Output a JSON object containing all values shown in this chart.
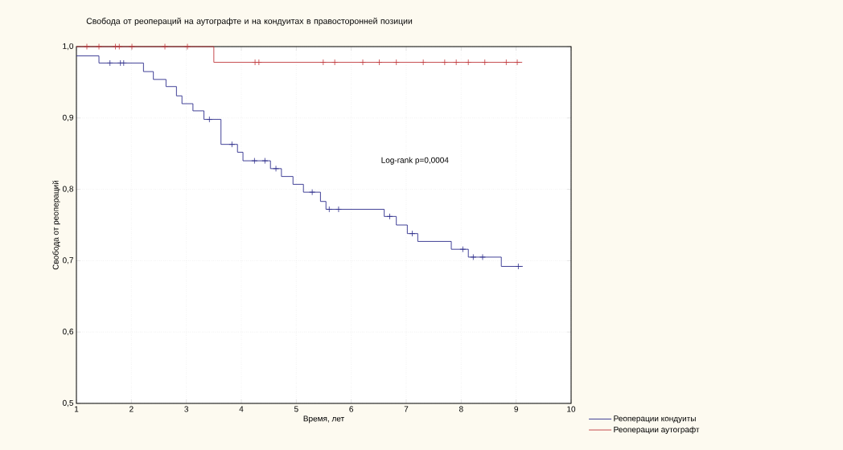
{
  "chart_data": {
    "type": "step",
    "title": "Свобода от реопераций на аутографте и на кондуитах в правосторонней позиции",
    "xlabel": "Время, лет",
    "ylabel": "Свобода от реопераций",
    "xlim": [
      1,
      10
    ],
    "ylim": [
      0.5,
      1.0
    ],
    "xticks": [
      1,
      2,
      3,
      4,
      5,
      6,
      7,
      8,
      9,
      10
    ],
    "yticks": [
      {
        "value": 0.5,
        "label": "0,5"
      },
      {
        "value": 0.6,
        "label": "0,6"
      },
      {
        "value": 0.7,
        "label": "0,7"
      },
      {
        "value": 0.8,
        "label": "0,8"
      },
      {
        "value": 0.9,
        "label": "0,9"
      },
      {
        "value": 1.0,
        "label": "1,0"
      }
    ],
    "grid": true,
    "legend": "bottom right",
    "line_style": "solid",
    "annotations": [
      "Log-rank p=0,0004"
    ],
    "series": [
      {
        "name": "Реоперации кондуиты",
        "color": "#2e2e8c",
        "x": [
          1,
          1.41,
          2.22,
          2.4,
          2.63,
          2.82,
          2.92,
          3.12,
          3.32,
          3.63,
          3.93,
          4.03,
          4.53,
          4.73,
          4.94,
          5.13,
          5.44,
          5.54,
          6.6,
          6.82,
          7.02,
          7.21,
          7.82,
          8.13,
          8.73,
          9.12
        ],
        "values": [
          0.987,
          0.977,
          0.965,
          0.954,
          0.944,
          0.931,
          0.92,
          0.91,
          0.898,
          0.863,
          0.852,
          0.84,
          0.829,
          0.818,
          0.807,
          0.796,
          0.783,
          0.772,
          0.762,
          0.75,
          0.738,
          0.727,
          0.716,
          0.705,
          0.692,
          0.692
        ]
      },
      {
        "name": "Реоперации аутографт",
        "color": "#c0383c",
        "x": [
          1,
          3.5,
          9.11
        ],
        "values": [
          1.0,
          0.978,
          0.978
        ]
      },
      {
        "type": "scatter",
        "marker": "cross",
        "color": "#2e2e8c",
        "x": [
          1.61,
          1.8,
          1.86,
          3.42,
          3.83,
          4.24,
          4.43,
          4.63,
          5.29,
          5.6,
          5.77,
          6.7,
          7.11,
          8.03,
          8.22,
          8.39,
          9.04
        ],
        "values": [
          0.977,
          0.977,
          0.977,
          0.898,
          0.863,
          0.84,
          0.84,
          0.829,
          0.796,
          0.772,
          0.772,
          0.762,
          0.738,
          0.716,
          0.705,
          0.705,
          0.692
        ]
      },
      {
        "type": "scatter",
        "marker": "cross",
        "color": "#c0383c",
        "x": [
          1.19,
          1.41,
          1.71,
          1.78,
          2.01,
          2.61,
          3.02,
          4.25,
          4.32,
          5.49,
          5.7,
          6.21,
          6.51,
          6.82,
          7.31,
          7.7,
          7.91,
          8.13,
          8.43,
          8.82,
          9.02
        ],
        "values": [
          1.0,
          1.0,
          1.0,
          1.0,
          1.0,
          1.0,
          1.0,
          0.978,
          0.978,
          0.978,
          0.978,
          0.978,
          0.978,
          0.978,
          0.978,
          0.978,
          0.978,
          0.978,
          0.978,
          0.978,
          0.978
        ]
      }
    ]
  }
}
